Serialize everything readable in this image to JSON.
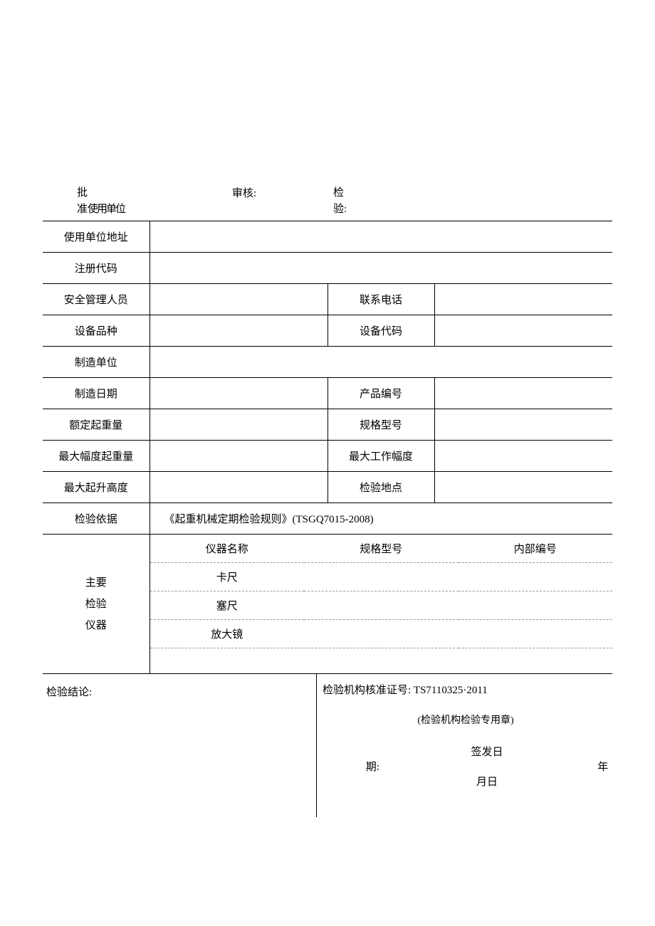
{
  "header": {
    "approve": "批\n准使用单位",
    "audit": "审核:",
    "inspect": "检\n验:"
  },
  "rows": {
    "unit_addr": "使用单位地址",
    "reg_code": "注册代码",
    "safety_mgr": "安全管理人员",
    "contact_phone": "联系电话",
    "equip_type": "设备品种",
    "equip_code": "设备代码",
    "manufacturer": "制造单位",
    "mfr_date": "制造日期",
    "product_no": "产品编号",
    "rated_load": "额定起重量",
    "spec_model": "规格型号",
    "max_amp_load": "最大幅度起重量",
    "max_work_amp": "最大工作幅度",
    "max_height": "最大起升高度",
    "insp_loc": "检验地点",
    "insp_basis": "检验依据",
    "insp_basis_val": "《起重机械定期检验规则》(TSGQ7015-2008)",
    "main_inst": "主要\n检验\n仪器"
  },
  "instruments": {
    "h_name": "仪器名称",
    "h_spec": "规格型号",
    "h_no": "内部编号",
    "r1": "卡尺",
    "r2": "塞尺",
    "r3": "放大镜"
  },
  "bottom": {
    "conclusion": "检验结论:",
    "cert": "检验机构核准证号: ",
    "cert_no": "TS7110325·2011",
    "seal": "(检验机构检验专用章)",
    "issue_date": "签发日期:",
    "ymd": "年月日"
  }
}
